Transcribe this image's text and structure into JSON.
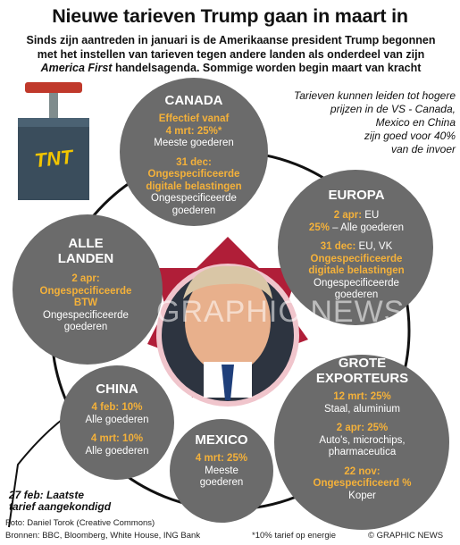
{
  "title": "Nieuwe tarieven Trump gaan in maart in",
  "intro": {
    "line1": "Sinds zijn aantreden in januari is de Amerikaanse president Trump begonnen",
    "line2": "met het instellen van tarieven tegen andere landen als onderdeel van zijn",
    "line3_em": "America First",
    "line3_rest": " handelsagenda. Sommige worden begin maart van kracht"
  },
  "note": [
    "Tarieven kunnen leiden tot hogere",
    "prijzen in de VS - Canada,",
    "Mexico en China",
    "zijn goed voor 40%",
    "van de invoer"
  ],
  "tnt_label": "TNT",
  "canada": {
    "heading": "CANADA",
    "y1": "Effectief vanaf",
    "y2": "4 mrt: 25%*",
    "w1": "Meeste goederen",
    "y3": "31 dec:",
    "y4": "Ongespecificeerde",
    "y5": "digitale belastingen",
    "w2": "Ongespecificeerde",
    "w3": "goederen"
  },
  "europa": {
    "heading": "EUROPA",
    "y1": "2 apr:",
    "w1": " EU",
    "y2": "25%",
    "w2": " – Alle goederen",
    "y3": "31 dec:",
    "w3": " EU, VK",
    "y4": "Ongespecificeerde",
    "y5": "digitale belastingen",
    "w4": "Ongespecificeerde",
    "w5": "goederen"
  },
  "alle": {
    "heading1": "ALLE",
    "heading2": "LANDEN",
    "y1": "2 apr:",
    "y2": "Ongespecificeerde",
    "y3": "BTW",
    "w1": "Ongespecificeerde",
    "w2": "goederen"
  },
  "grote": {
    "heading1": "GROTE",
    "heading2": "EXPORTEURS",
    "y1": "12 mrt: 25%",
    "w1": "Staal, aluminium",
    "y2": "2 apr: 25%",
    "w2": "Auto's, microchips,",
    "w3": "pharmaceutica",
    "y3": "22 nov:",
    "y4": "Ongespecificeerd %",
    "w4": "Koper"
  },
  "china": {
    "heading": "CHINA",
    "y1": "4 feb: 10%",
    "w1": "Alle goederen",
    "y2": "4 mrt: 10%",
    "w2": "Alle goederen"
  },
  "mexico": {
    "heading": "MEXICO",
    "y1": "4 mrt: 25%",
    "w1": "Meeste",
    "w2": "goederen"
  },
  "deadline": [
    "27 feb: Laatste",
    "tarief aangekondigd"
  ],
  "watermark": "GRAPHIC NEWS",
  "footer": {
    "photo": "Foto: Daniel Torok (Creative Commons)",
    "sources": "Bronnen: BBC, Bloomberg, White House, ING Bank",
    "footnote": "*10% tarief op energie",
    "copyright": "© GRAPHIC NEWS"
  },
  "colors": {
    "bubble": "#6b6b6b",
    "accent": "#f4b13a",
    "star": "#b01e38",
    "tnt_box": "#3a4d5c",
    "tnt_text": "#f2c500",
    "plunger": "#c0392b"
  }
}
